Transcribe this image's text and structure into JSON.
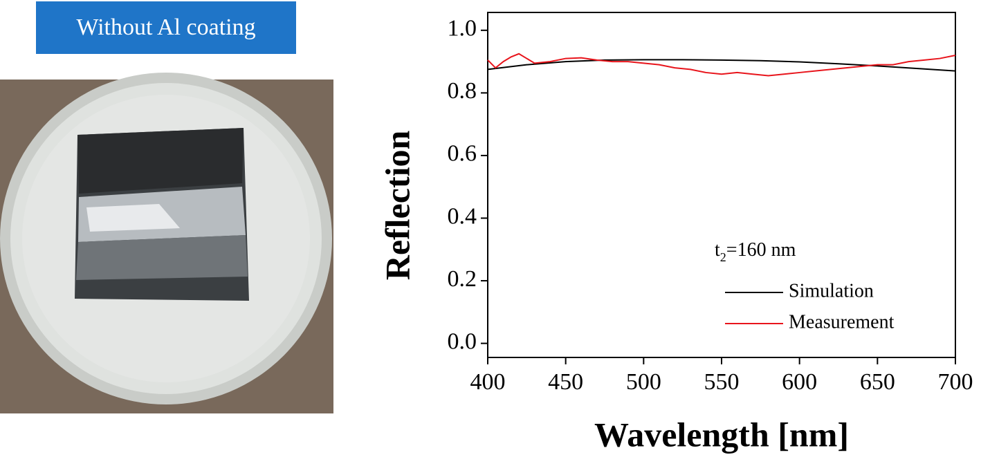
{
  "chart_data": {
    "type": "line",
    "caption": "Without Al coating",
    "ylabel": "Reflection",
    "xlabel": "Wavelength [nm]",
    "legend_title": {
      "main": "t",
      "sub": "2",
      "rest": "=160 nm"
    },
    "xlim": [
      400,
      700
    ],
    "xticks": [
      400,
      450,
      500,
      550,
      600,
      650,
      700
    ],
    "ylim": [
      -0.045,
      1.057
    ],
    "yticks": [
      {
        "value": 0,
        "label": "0.0"
      },
      0.2,
      0.4,
      0.6,
      0.8,
      {
        "value": 1,
        "label": "1.0"
      }
    ],
    "series": [
      {
        "name": "Simulation",
        "color": "#000000",
        "x": [
          400,
          425,
          450,
          475,
          500,
          525,
          550,
          575,
          600,
          625,
          650,
          675,
          700
        ],
        "values": [
          0.875,
          0.89,
          0.9,
          0.905,
          0.906,
          0.906,
          0.905,
          0.903,
          0.899,
          0.893,
          0.886,
          0.878,
          0.87
        ]
      },
      {
        "name": "Measurement",
        "color": "#e8141b",
        "x": [
          400,
          405,
          410,
          415,
          420,
          425,
          430,
          440,
          450,
          460,
          470,
          480,
          490,
          500,
          510,
          520,
          530,
          540,
          550,
          560,
          570,
          580,
          590,
          600,
          610,
          620,
          630,
          640,
          650,
          660,
          670,
          680,
          690,
          700
        ],
        "values": [
          0.905,
          0.88,
          0.9,
          0.915,
          0.925,
          0.91,
          0.895,
          0.9,
          0.91,
          0.912,
          0.905,
          0.9,
          0.9,
          0.895,
          0.89,
          0.88,
          0.875,
          0.865,
          0.86,
          0.865,
          0.86,
          0.855,
          0.86,
          0.865,
          0.87,
          0.875,
          0.88,
          0.885,
          0.89,
          0.89,
          0.9,
          0.905,
          0.91,
          0.92
        ]
      }
    ]
  }
}
